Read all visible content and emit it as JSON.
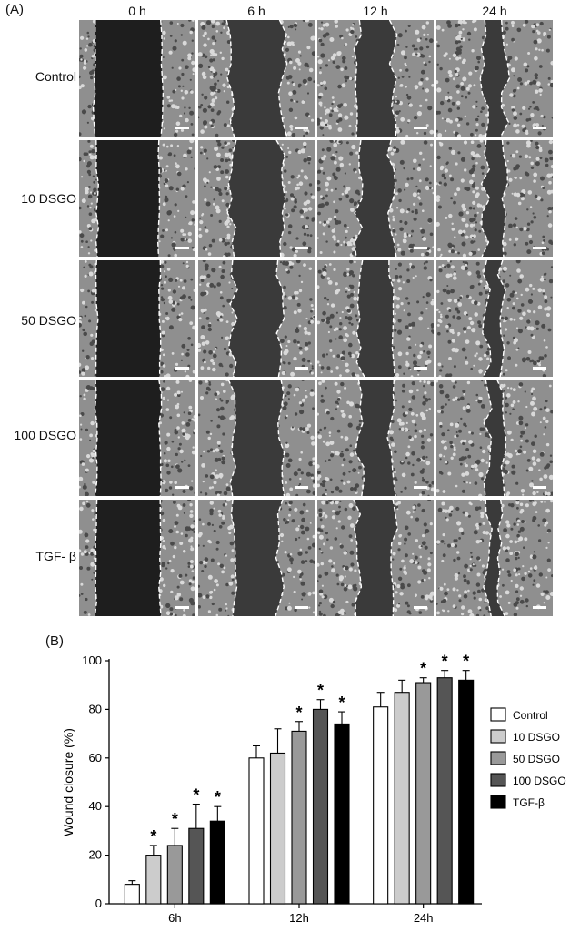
{
  "panel_a": {
    "label": "(A)",
    "columns": [
      "0 h",
      "6 h",
      "12 h",
      "24 h"
    ],
    "rows": [
      "Control",
      "10 DSGO",
      "50 DSGO",
      "100 DSGO",
      "TGF- β"
    ],
    "wound_gap_fraction": [
      [
        0.58,
        0.45,
        0.31,
        0.18
      ],
      [
        0.53,
        0.42,
        0.28,
        0.15
      ],
      [
        0.54,
        0.4,
        0.26,
        0.13
      ],
      [
        0.55,
        0.41,
        0.27,
        0.12
      ],
      [
        0.55,
        0.4,
        0.3,
        0.12
      ]
    ]
  },
  "chart_data": {
    "type": "bar",
    "panel_label": "(B)",
    "ylabel": "Wound closure (%)",
    "ylim": [
      0,
      100
    ],
    "yticks": [
      0,
      20,
      40,
      60,
      80,
      100
    ],
    "categories": [
      "6h",
      "12h",
      "24h"
    ],
    "legend_position": "right",
    "series": [
      {
        "name": "Control",
        "color": "#ffffff",
        "values": [
          8,
          60,
          81
        ],
        "errors": [
          1.5,
          5,
          6
        ],
        "significant": [
          false,
          false,
          false
        ]
      },
      {
        "name": "10 DSGO",
        "color": "#cccccc",
        "values": [
          20,
          62,
          87
        ],
        "errors": [
          4,
          10,
          5
        ],
        "significant": [
          true,
          false,
          false
        ]
      },
      {
        "name": "50 DSGO",
        "color": "#999999",
        "values": [
          24,
          71,
          91
        ],
        "errors": [
          7,
          4,
          2
        ],
        "significant": [
          true,
          true,
          true
        ]
      },
      {
        "name": "100 DSGO",
        "color": "#555555",
        "values": [
          31,
          80,
          93
        ],
        "errors": [
          10,
          4,
          3
        ],
        "significant": [
          true,
          true,
          true
        ]
      },
      {
        "name": "TGF-β",
        "color": "#000000",
        "values": [
          34,
          74,
          92
        ],
        "errors": [
          6,
          5,
          4
        ],
        "significant": [
          true,
          true,
          true
        ]
      }
    ],
    "significance_marker": "*"
  }
}
